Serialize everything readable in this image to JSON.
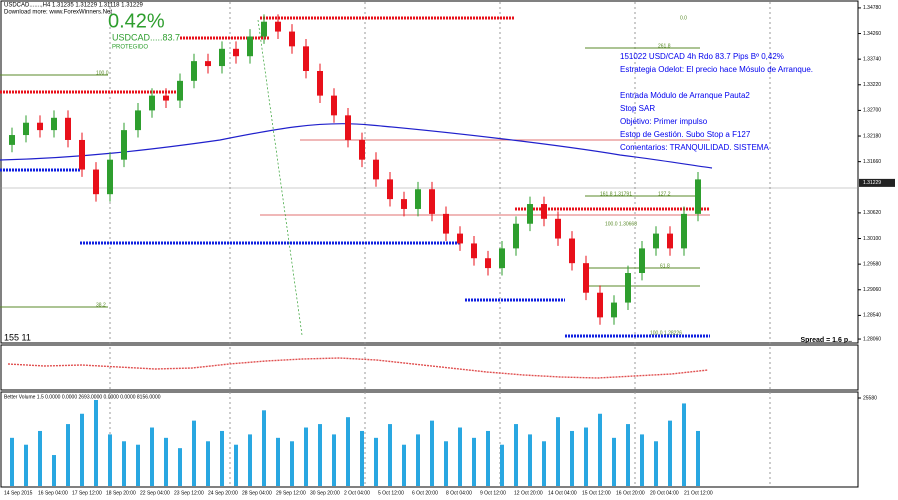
{
  "chart_data": {
    "type": "candlestick",
    "header": "USDCAD.......,H4 1.31235 1.31229 1.31118 1.31229",
    "subheader": "Download more: www.ForexWinners.Net",
    "result_percent": "0.42%",
    "result_pips": "USDCAD.....83.7",
    "result_status": "PROTEGIDO",
    "annotations": [
      "151022 USD/CAD 4h Rdo 83.7 Pips Bº 0,42%",
      "Estrategia Odelot: El precio hace Mósulo de Arranque.",
      "Entrada Módulo de Arranque Pauta2",
      "Stop SAR",
      "Objetivo: Primer impulso",
      "Estop de Gestión. Subo Stop a F127",
      "Comentarios: TRANQUILIDAD. SISTEMA"
    ],
    "fib_labels": [
      "0.0",
      "261.8",
      "100.0",
      "161.8 1.31791",
      "127.2",
      "100.0 1.30668",
      "61.8",
      "38.2",
      "100.0 1.28226"
    ],
    "spread": "Spread = 1.6 p..",
    "min_max": "155 11",
    "volume_title": "Better Volume 1.5 0.0000 0.0000 2693.0000 0.0000 0.0000 8156.0000",
    "up_color": "#2e9e2e",
    "down_color": "#e8101a",
    "open": [
      1.32,
      1.322,
      1.3245,
      1.323,
      1.3255,
      1.321,
      1.315,
      1.31,
      1.317,
      1.323,
      1.327,
      1.33,
      1.329,
      1.333,
      1.337,
      1.336,
      1.3395,
      1.338,
      1.342,
      1.345,
      1.343,
      1.34,
      1.335,
      1.33,
      1.326,
      1.321,
      1.317,
      1.313,
      1.309,
      1.307,
      1.311,
      1.306,
      1.302,
      1.3,
      1.297,
      1.295,
      1.299,
      1.304,
      1.308,
      1.305,
      1.301,
      1.296,
      1.29,
      1.285,
      1.288,
      1.294,
      1.299,
      1.302,
      1.299,
      1.306
    ],
    "high": [
      1.3235,
      1.326,
      1.326,
      1.327,
      1.327,
      1.3225,
      1.3165,
      1.3185,
      1.3245,
      1.3285,
      1.3315,
      1.3315,
      1.3345,
      1.3385,
      1.3385,
      1.341,
      1.341,
      1.3435,
      1.3465,
      1.3465,
      1.3445,
      1.3415,
      1.3365,
      1.3315,
      1.3275,
      1.3225,
      1.3185,
      1.3145,
      1.3105,
      1.3125,
      1.3125,
      1.3075,
      1.3035,
      1.3015,
      1.2985,
      1.3005,
      1.3055,
      1.3095,
      1.3095,
      1.3065,
      1.3025,
      1.2975,
      1.2915,
      1.2895,
      1.2955,
      1.3005,
      1.3035,
      1.3035,
      1.3075,
      1.3145
    ],
    "low": [
      1.3185,
      1.3205,
      1.3215,
      1.3215,
      1.3195,
      1.3135,
      1.3085,
      1.3085,
      1.3155,
      1.3215,
      1.3255,
      1.3275,
      1.3275,
      1.3315,
      1.3345,
      1.3345,
      1.3365,
      1.3365,
      1.3405,
      1.3415,
      1.3385,
      1.3335,
      1.3285,
      1.3245,
      1.3195,
      1.3155,
      1.3115,
      1.3075,
      1.3055,
      1.3055,
      1.3045,
      1.3005,
      1.2985,
      1.2955,
      1.2935,
      1.2935,
      1.2975,
      1.3025,
      1.3035,
      1.2995,
      1.2945,
      1.2885,
      1.2835,
      1.2835,
      1.2865,
      1.2925,
      1.2975,
      1.2975,
      1.2975,
      1.3045
    ],
    "close": [
      1.322,
      1.3245,
      1.323,
      1.3255,
      1.321,
      1.315,
      1.31,
      1.317,
      1.323,
      1.327,
      1.33,
      1.329,
      1.333,
      1.337,
      1.336,
      1.3395,
      1.338,
      1.342,
      1.345,
      1.343,
      1.34,
      1.335,
      1.33,
      1.326,
      1.321,
      1.317,
      1.313,
      1.309,
      1.307,
      1.311,
      1.306,
      1.302,
      1.3,
      1.297,
      1.295,
      1.299,
      1.304,
      1.308,
      1.305,
      1.301,
      1.296,
      1.29,
      1.285,
      1.288,
      1.294,
      1.299,
      1.302,
      1.299,
      1.306,
      1.313
    ],
    "ylim": [
      1.28,
      1.349
    ],
    "yticks": [
      {
        "value": 1.3478,
        "label": "1.34780"
      },
      {
        "value": 1.3426,
        "label": "1.34260"
      },
      {
        "value": 1.3374,
        "label": "1.33740"
      },
      {
        "value": 1.3322,
        "label": "1.33220"
      },
      {
        "value": 1.327,
        "label": "1.32700"
      },
      {
        "value": 1.3218,
        "label": "1.32180"
      },
      {
        "value": 1.3166,
        "label": "1.31660"
      },
      {
        "value": 1.3062,
        "label": "1.30620"
      },
      {
        "value": 1.301,
        "label": "1.30100"
      },
      {
        "value": 1.2958,
        "label": "1.29580"
      },
      {
        "value": 1.2906,
        "label": "1.29060"
      },
      {
        "value": 1.2854,
        "label": "1.28540"
      },
      {
        "value": 1.2806,
        "label": "1.28060"
      }
    ],
    "last_price": {
      "value": 1.31229,
      "label": "1.31229"
    },
    "x_labels": [
      "14 Sep 2015",
      "16 Sep 04:00",
      "17 Sep 12:00",
      "18 Sep 20:00",
      "22 Sep 04:00",
      "23 Sep 12:00",
      "24 Sep 20:00",
      "28 Sep 04:00",
      "29 Sep 12:00",
      "30 Sep 20:00",
      "2 Oct 04:00",
      "5 Oct 12:00",
      "6 Oct 20:00",
      "8 Oct 04:00",
      "9 Oct 12:00",
      "12 Oct 20:00",
      "14 Oct 04:00",
      "15 Oct 12:00",
      "16 Oct 20:00",
      "20 Oct 04:00",
      "21 Oct 12:00"
    ],
    "oscillator": [
      0.2,
      0.1,
      0.15,
      0.05,
      -0.05,
      0.0,
      0.2,
      0.35,
      0.45,
      0.5,
      0.4,
      0.2,
      0.0,
      -0.2,
      -0.35,
      -0.45,
      -0.5,
      -0.4,
      -0.3,
      -0.1
    ],
    "oscillator_ylim": [
      -1,
      1
    ],
    "volume": [
      14000,
      12000,
      16000,
      9000,
      18000,
      21000,
      25000,
      15000,
      13000,
      12000,
      17000,
      14000,
      11000,
      19000,
      13000,
      16000,
      12000,
      15000,
      22000,
      14000,
      13000,
      17000,
      18000,
      15000,
      20000,
      16000,
      14000,
      18000,
      12000,
      15000,
      19000,
      13000,
      17000,
      14000,
      16000,
      12000,
      18000,
      15000,
      13000,
      20000,
      16000,
      17000,
      21000,
      14000,
      18000,
      15000,
      13000,
      19000,
      24000,
      16000
    ],
    "volume_color": "#29a7e1",
    "volume_ylim": [
      0,
      25580
    ],
    "volume_ticks": [
      25580
    ]
  }
}
